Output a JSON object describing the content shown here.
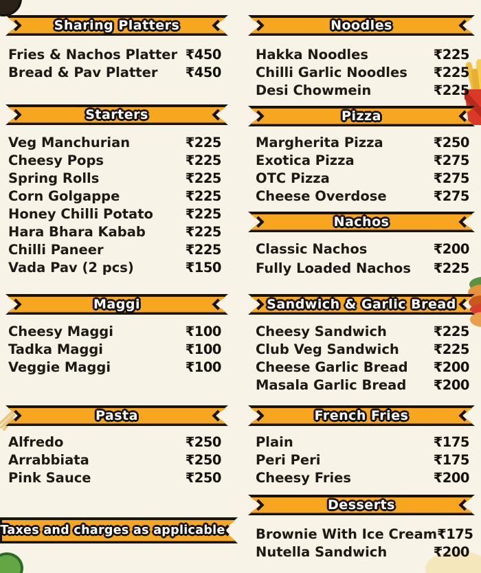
{
  "page": {
    "background_color": "#F7F3E7",
    "ribbon_color": "#F6A71F",
    "outline_color": "#17130E",
    "text_color": "#1D1A15",
    "currency_symbol": "₹"
  },
  "footer": {
    "note": "Taxes and charges as applicable"
  },
  "decorations": [
    "cookie-corner-top-left",
    "fries-right-edge",
    "burger-right-edge",
    "lime-bottom-left",
    "glow-bottom-right",
    "wheat-left-edge"
  ],
  "columns": [
    {
      "side": "left",
      "sections": [
        {
          "key": "sharing-platters",
          "title": "Sharing Platters",
          "items": [
            {
              "name": "Fries & Nachos Platter",
              "price": "₹450"
            },
            {
              "name": "Bread & Pav Platter",
              "price": "₹450"
            }
          ]
        },
        {
          "key": "starters",
          "title": "Starters",
          "items": [
            {
              "name": "Veg Manchurian",
              "price": "₹225"
            },
            {
              "name": "Cheesy Pops",
              "price": "₹225"
            },
            {
              "name": "Spring Rolls",
              "price": "₹225"
            },
            {
              "name": "Corn Golgappe",
              "price": "₹225"
            },
            {
              "name": "Honey Chilli Potato",
              "price": "₹225"
            },
            {
              "name": "Hara Bhara Kabab",
              "price": "₹225"
            },
            {
              "name": "Chilli Paneer",
              "price": "₹225"
            },
            {
              "name": "Vada Pav (2 pcs)",
              "price": "₹150"
            }
          ]
        },
        {
          "key": "maggi",
          "title": "Maggi",
          "items": [
            {
              "name": "Cheesy Maggi",
              "price": "₹100"
            },
            {
              "name": "Tadka Maggi",
              "price": "₹100"
            },
            {
              "name": "Veggie Maggi",
              "price": "₹100"
            }
          ]
        },
        {
          "key": "pasta",
          "title": "Pasta",
          "items": [
            {
              "name": "Alfredo",
              "price": "₹250"
            },
            {
              "name": "Arrabbiata",
              "price": "₹250"
            },
            {
              "name": "Pink Sauce",
              "price": "₹250"
            }
          ]
        }
      ]
    },
    {
      "side": "right",
      "sections": [
        {
          "key": "noodles",
          "title": "Noodles",
          "items": [
            {
              "name": "Hakka Noodles",
              "price": "₹225"
            },
            {
              "name": "Chilli Garlic Noodles",
              "price": "₹225"
            },
            {
              "name": "Desi Chowmein",
              "price": "₹225"
            }
          ]
        },
        {
          "key": "pizza",
          "title": "Pizza",
          "items": [
            {
              "name": "Margherita Pizza",
              "price": "₹250"
            },
            {
              "name": "Exotica Pizza",
              "price": "₹275"
            },
            {
              "name": "OTC Pizza",
              "price": "₹275"
            },
            {
              "name": "Cheese Overdose",
              "price": "₹275"
            }
          ]
        },
        {
          "key": "nachos",
          "title": "Nachos",
          "items": [
            {
              "name": "Classic Nachos",
              "price": "₹200"
            },
            {
              "name": "Fully Loaded Nachos",
              "price": "₹225"
            }
          ]
        },
        {
          "key": "sandwich-garlic-bread",
          "title": "Sandwich & Garlic Bread",
          "items": [
            {
              "name": "Cheesy Sandwich",
              "price": "₹225"
            },
            {
              "name": "Club Veg Sandwich",
              "price": "₹225"
            },
            {
              "name": "Cheese Garlic Bread",
              "price": "₹200"
            },
            {
              "name": "Masala Garlic Bread",
              "price": "₹200"
            }
          ]
        },
        {
          "key": "french-fries",
          "title": "French Fries",
          "items": [
            {
              "name": "Plain",
              "price": "₹175"
            },
            {
              "name": "Peri Peri",
              "price": "₹175"
            },
            {
              "name": "Cheesy Fries",
              "price": "₹200"
            }
          ]
        },
        {
          "key": "desserts",
          "title": "Desserts",
          "items": [
            {
              "name": "Brownie With Ice Cream",
              "price": "₹175"
            },
            {
              "name": "Nutella Sandwich",
              "price": "₹200"
            }
          ]
        }
      ]
    }
  ]
}
